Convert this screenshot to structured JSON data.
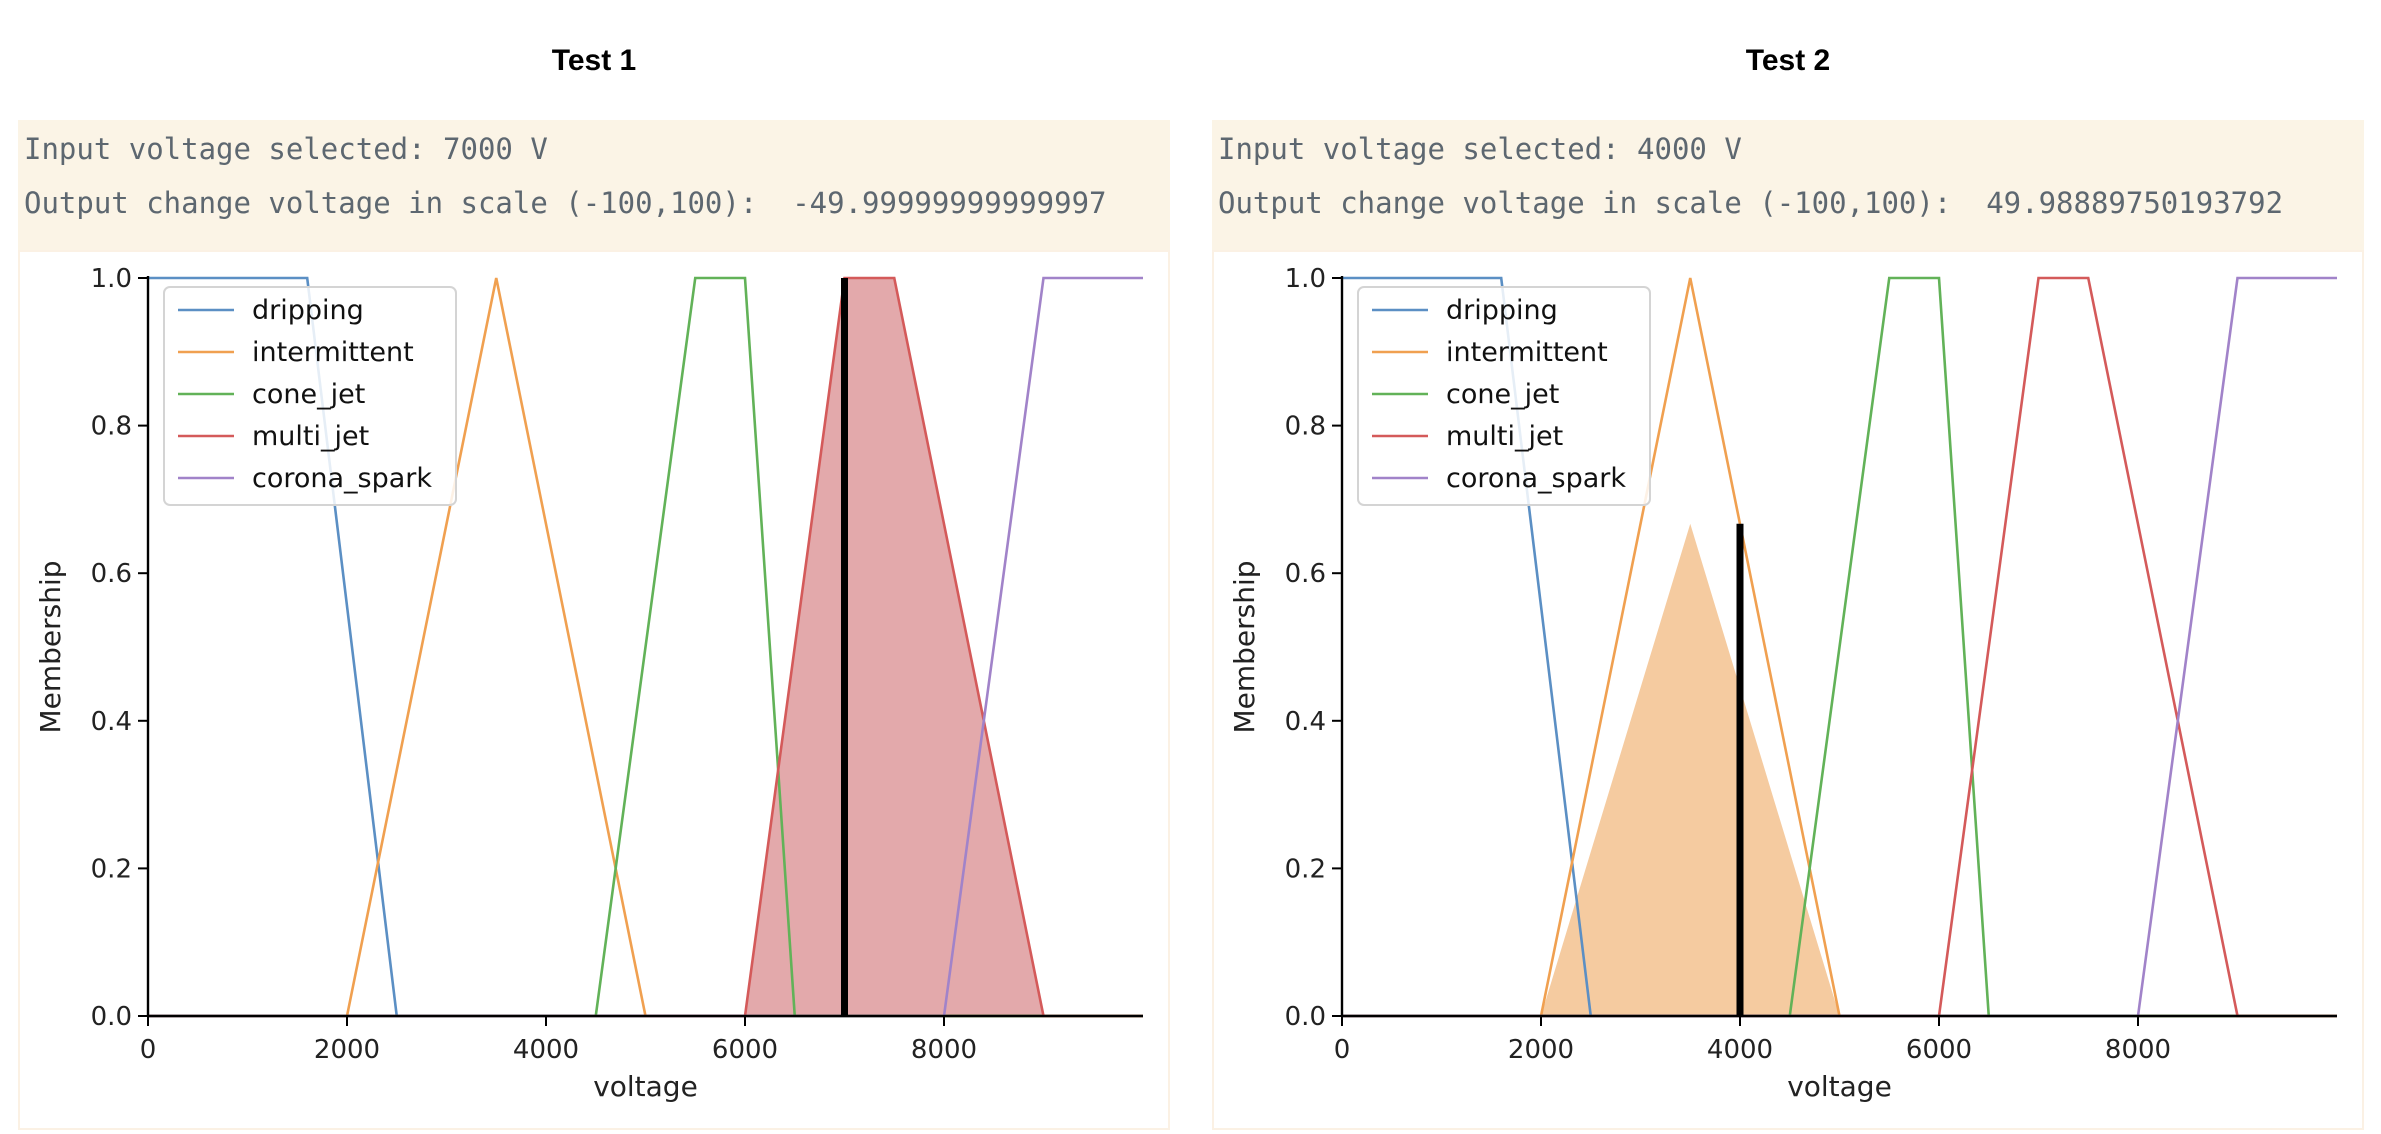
{
  "panels": [
    {
      "title": "Test 1",
      "line1": "Input voltage selected: 7000 V",
      "line2": "Output change voltage in scale (-100,100):  -49.99999999999997"
    },
    {
      "title": "Test 2",
      "line1": "Input voltage selected: 4000 V",
      "line2": "Output change voltage in scale (-100,100):  49.98889750193792"
    }
  ],
  "colors": {
    "dripping": "#5b8fc4",
    "intermittent": "#f0a050",
    "cone_jet": "#62b258",
    "multi_jet": "#d45a5a",
    "corona_spark": "#a183c9",
    "fill_multi_jet": "#e3a9ab",
    "fill_intermittent": "#f5cba0",
    "marker": "#000000"
  },
  "chart_data": [
    {
      "type": "line",
      "title": "",
      "xlabel": "voltage",
      "ylabel": "Membership",
      "xlim": [
        0,
        10000
      ],
      "ylim": [
        0,
        1.0
      ],
      "xticks": [
        "0",
        "2000",
        "4000",
        "6000",
        "8000"
      ],
      "yticks": [
        "0.0",
        "0.2",
        "0.4",
        "0.6",
        "0.8",
        "1.0"
      ],
      "legend_position": "upper-left",
      "series": [
        {
          "name": "dripping",
          "x": [
            0,
            1600,
            2500,
            10000
          ],
          "y": [
            1,
            1,
            0,
            0
          ]
        },
        {
          "name": "intermittent",
          "x": [
            0,
            2000,
            3500,
            5000,
            10000
          ],
          "y": [
            0,
            0,
            1,
            0,
            0
          ]
        },
        {
          "name": "cone_jet",
          "x": [
            0,
            4500,
            5500,
            6000,
            6500,
            10000
          ],
          "y": [
            0,
            0,
            1,
            1,
            0,
            0
          ]
        },
        {
          "name": "multi_jet",
          "x": [
            0,
            6000,
            7000,
            7500,
            9000,
            10000
          ],
          "y": [
            0,
            0,
            1,
            1,
            0,
            0
          ]
        },
        {
          "name": "corona_spark",
          "x": [
            0,
            8000,
            9000,
            10000
          ],
          "y": [
            0,
            0,
            1,
            1
          ]
        }
      ],
      "activation": {
        "series": "multi_jet",
        "level": 1.0
      },
      "marker": {
        "x": 7000,
        "y": 1.0
      }
    },
    {
      "type": "line",
      "title": "",
      "xlabel": "voltage",
      "ylabel": "Membership",
      "xlim": [
        0,
        10000
      ],
      "ylim": [
        0,
        1.0
      ],
      "xticks": [
        "0",
        "2000",
        "4000",
        "6000",
        "8000"
      ],
      "yticks": [
        "0.0",
        "0.2",
        "0.4",
        "0.6",
        "0.8",
        "1.0"
      ],
      "legend_position": "upper-left",
      "series": [
        {
          "name": "dripping",
          "x": [
            0,
            1600,
            2500,
            10000
          ],
          "y": [
            1,
            1,
            0,
            0
          ]
        },
        {
          "name": "intermittent",
          "x": [
            0,
            2000,
            3500,
            5000,
            10000
          ],
          "y": [
            0,
            0,
            1,
            0,
            0
          ]
        },
        {
          "name": "cone_jet",
          "x": [
            0,
            4500,
            5500,
            6000,
            6500,
            10000
          ],
          "y": [
            0,
            0,
            1,
            1,
            0,
            0
          ]
        },
        {
          "name": "multi_jet",
          "x": [
            0,
            6000,
            7000,
            7500,
            9000,
            10000
          ],
          "y": [
            0,
            0,
            1,
            1,
            0,
            0
          ]
        },
        {
          "name": "corona_spark",
          "x": [
            0,
            8000,
            9000,
            10000
          ],
          "y": [
            0,
            0,
            1,
            1
          ]
        }
      ],
      "activation": {
        "series": "intermittent",
        "level": 0.667
      },
      "marker": {
        "x": 4000,
        "y": 0.667
      }
    }
  ]
}
